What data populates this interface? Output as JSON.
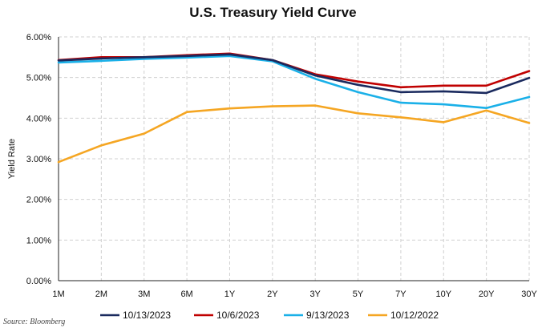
{
  "chart_data": {
    "type": "line",
    "title": "U.S. Treasury Yield Curve",
    "xlabel": "",
    "ylabel": "Yield Rate",
    "categories": [
      "1M",
      "2M",
      "3M",
      "6M",
      "1Y",
      "2Y",
      "3Y",
      "5Y",
      "7Y",
      "10Y",
      "20Y",
      "30Y"
    ],
    "ylim": [
      0,
      6
    ],
    "yticks": [
      "0.00%",
      "1.00%",
      "2.00%",
      "3.00%",
      "4.00%",
      "5.00%",
      "6.00%"
    ],
    "grid": true,
    "legend_position": "bottom",
    "series": [
      {
        "name": "10/13/2023",
        "color": "#1a2a5e",
        "values": [
          5.42,
          5.47,
          5.5,
          5.53,
          5.57,
          5.43,
          5.05,
          4.82,
          4.64,
          4.66,
          4.62,
          4.99
        ]
      },
      {
        "name": "10/6/2023",
        "color": "#c00000",
        "values": [
          5.43,
          5.5,
          5.5,
          5.55,
          5.59,
          5.43,
          5.08,
          4.9,
          4.76,
          4.8,
          4.8,
          5.16
        ]
      },
      {
        "name": "9/13/2023",
        "color": "#1ab0e8",
        "values": [
          5.37,
          5.41,
          5.46,
          5.49,
          5.53,
          5.4,
          4.97,
          4.64,
          4.38,
          4.34,
          4.25,
          4.52
        ]
      },
      {
        "name": "10/12/2022",
        "color": "#f5a623",
        "values": [
          2.92,
          3.33,
          3.62,
          4.15,
          4.24,
          4.29,
          4.31,
          4.12,
          4.02,
          3.9,
          4.19,
          3.88
        ]
      }
    ]
  },
  "source_note": "Source: Bloomberg"
}
